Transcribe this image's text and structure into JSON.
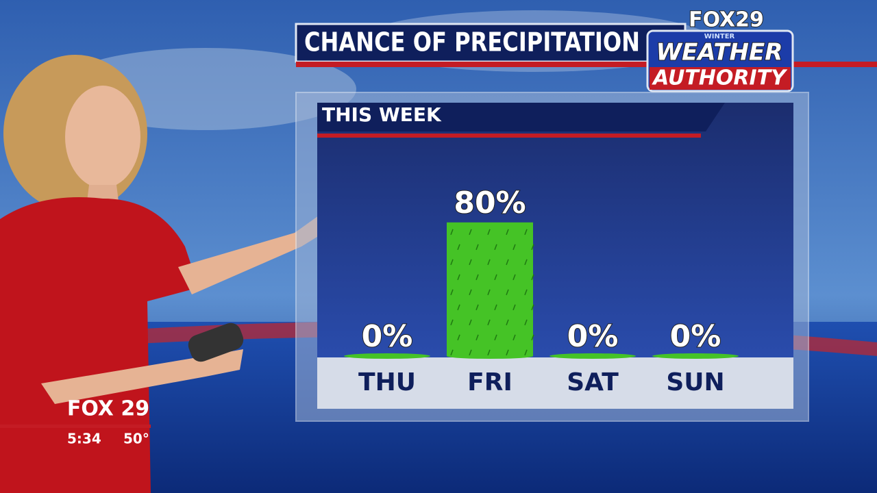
{
  "chart_data": {
    "type": "bar",
    "title": "CHANCE OF PRECIPITATION",
    "subtitle": "THIS WEEK",
    "categories": [
      "THU",
      "FRI",
      "SAT",
      "SUN"
    ],
    "values": [
      0,
      80,
      0,
      0
    ],
    "value_labels": [
      "0%",
      "80%",
      "0%",
      "0%"
    ],
    "color": "#45c326",
    "ylim": [
      0,
      100
    ]
  },
  "logo": {
    "brand": "FOX29",
    "season": "WINTER",
    "line1": "WEATHER",
    "line2": "AUTHORITY"
  },
  "bug": {
    "brand": "FOX 29",
    "time": "5:34",
    "temperature": "50°"
  }
}
